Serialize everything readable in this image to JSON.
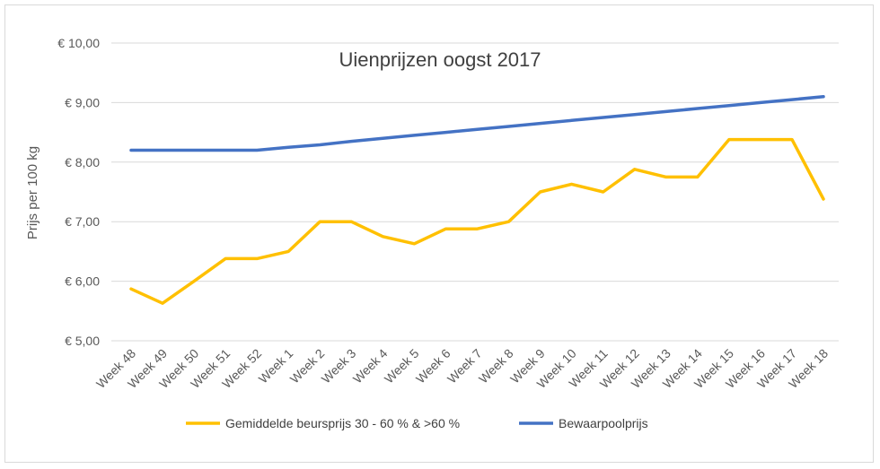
{
  "chart_data": {
    "type": "line",
    "title": "Uienprijzen oogst 2017",
    "xlabel": "",
    "ylabel": "Prijs per 100 kg",
    "ylim": [
      5,
      10
    ],
    "yticks": [
      5,
      6,
      7,
      8,
      9,
      10
    ],
    "ytick_labels": [
      "€ 5,00",
      "€ 6,00",
      "€ 7,00",
      "€ 8,00",
      "€ 9,00",
      "€ 10,00"
    ],
    "grid": true,
    "legend_position": "bottom",
    "categories": [
      "Week 48",
      "Week 49",
      "Week 50",
      "Week 51",
      "Week 52",
      "Week 1",
      "Week 2",
      "Week 3",
      "Week 4",
      "Week 5",
      "Week 6",
      "Week 7",
      "Week 8",
      "Week 9",
      "Week 10",
      "Week 11",
      "Week 12",
      "Week 13",
      "Week 14",
      "Week 15",
      "Week 16",
      "Week 17",
      "Week 18"
    ],
    "series": [
      {
        "name": "Gemiddelde beursprijs 30 - 60 % & >60 %",
        "color": "#ffc000",
        "values": [
          5.87,
          5.63,
          6.0,
          6.38,
          6.38,
          6.5,
          7.0,
          7.0,
          6.75,
          6.63,
          6.88,
          6.88,
          7.0,
          7.5,
          7.63,
          7.5,
          7.88,
          7.75,
          7.75,
          8.38,
          8.38,
          8.38,
          7.38
        ]
      },
      {
        "name": "Bewaarpoolprijs",
        "color": "#4472c4",
        "values": [
          8.2,
          8.2,
          8.2,
          8.2,
          8.2,
          8.25,
          8.29,
          8.35,
          8.4,
          8.45,
          8.5,
          8.55,
          8.6,
          8.65,
          8.7,
          8.75,
          8.8,
          8.85,
          8.9,
          8.95,
          9.0,
          9.05,
          9.1
        ]
      }
    ]
  }
}
